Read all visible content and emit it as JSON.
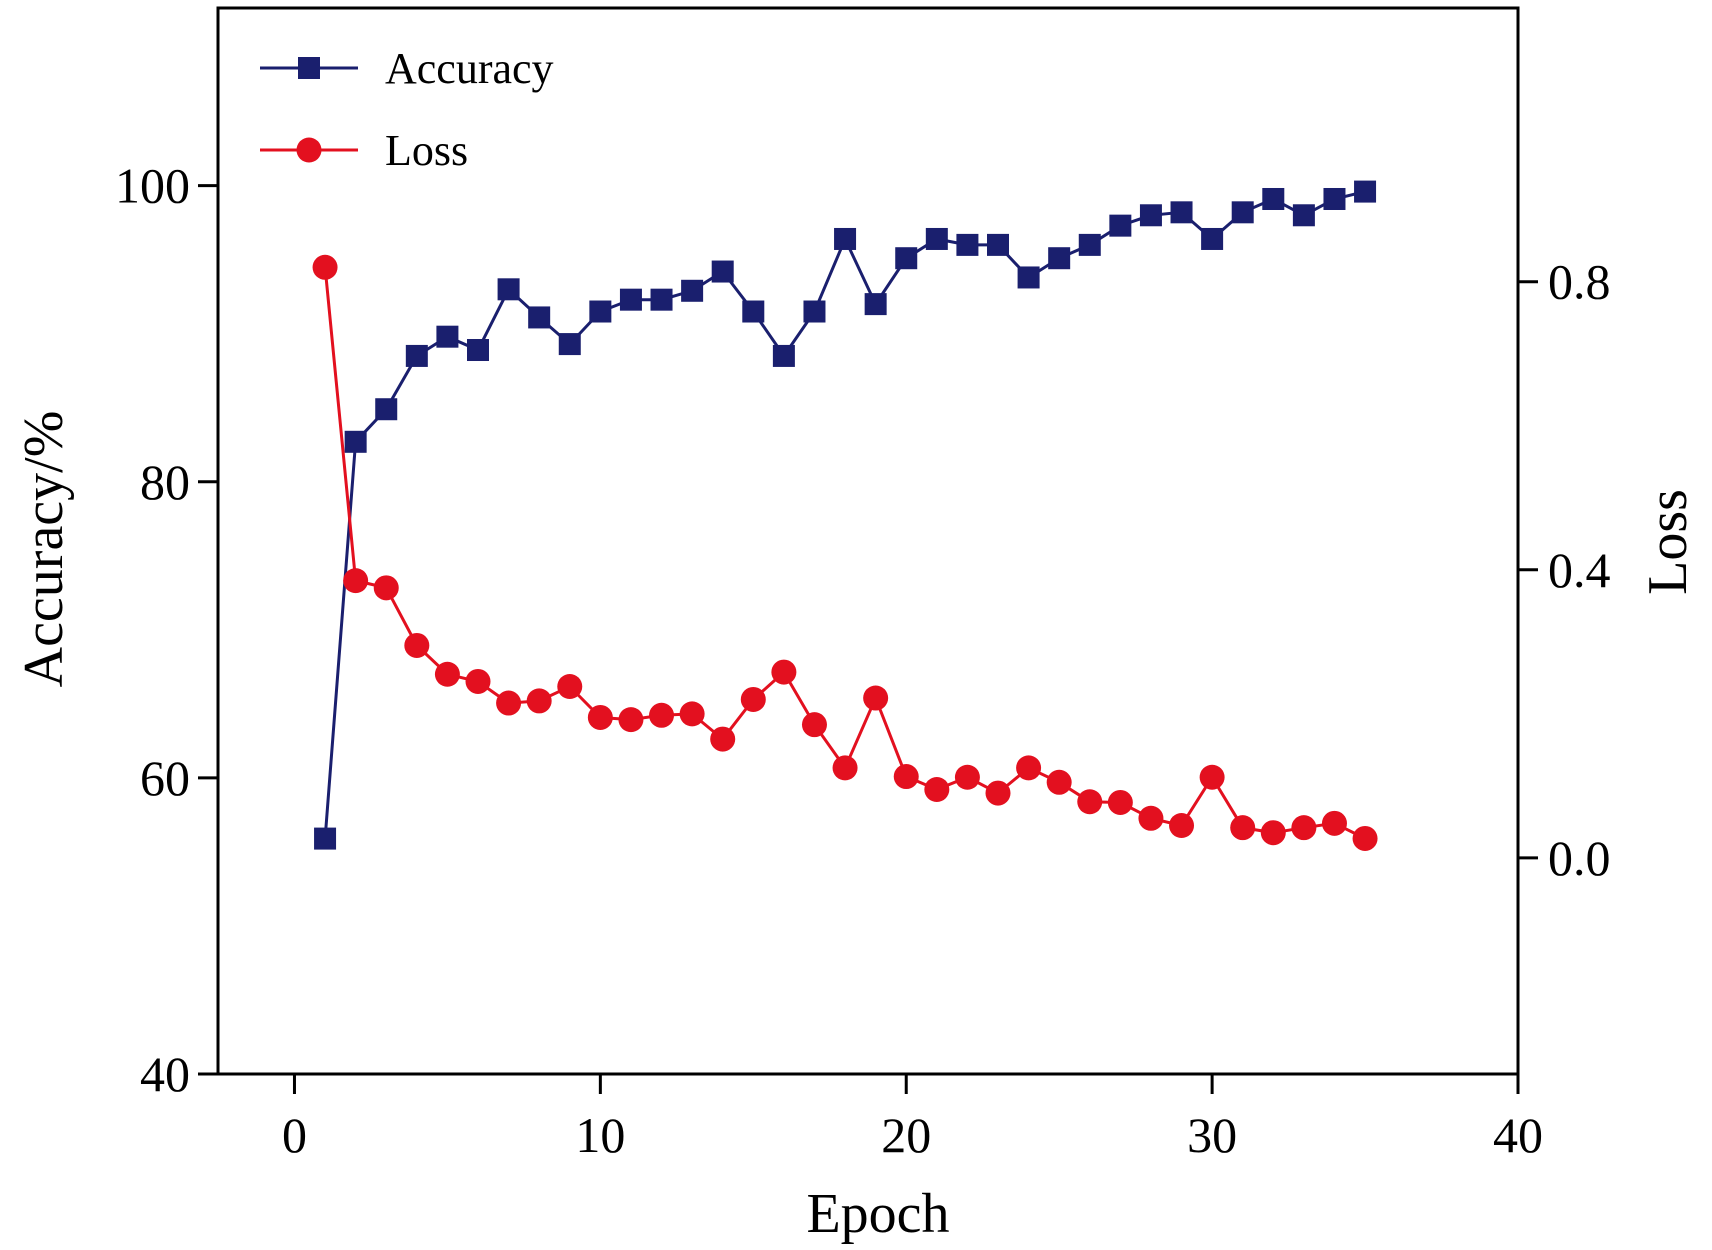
{
  "colors": {
    "accuracy": "#1a1f6e",
    "loss": "#e3101f",
    "axis": "#000000"
  },
  "chart_data": {
    "type": "line",
    "x_axis": {
      "label": "Epoch",
      "range": [
        -2.5,
        40
      ],
      "ticks": [
        0,
        10,
        20,
        30,
        40
      ],
      "tick_labels": [
        "0",
        "10",
        "20",
        "30",
        "40"
      ]
    },
    "y_axis_left": {
      "label": "Accuracy/%",
      "range": [
        40,
        112
      ],
      "ticks": [
        40,
        60,
        80,
        100
      ],
      "tick_labels": [
        "40",
        "60",
        "80",
        "100"
      ]
    },
    "y_axis_right": {
      "label": "Loss",
      "range": [
        -0.3,
        1.18
      ],
      "ticks": [
        0.0,
        0.4,
        0.8
      ],
      "tick_labels": [
        "0.0",
        "0.4",
        "0.8"
      ]
    },
    "legend": {
      "position": "top-left",
      "entries": [
        "Accuracy",
        "Loss"
      ]
    },
    "x": [
      1,
      2,
      3,
      4,
      5,
      6,
      7,
      8,
      9,
      10,
      11,
      12,
      13,
      14,
      15,
      16,
      17,
      18,
      19,
      20,
      21,
      22,
      23,
      24,
      25,
      26,
      27,
      28,
      29,
      30,
      31,
      32,
      33,
      34,
      35
    ],
    "series": [
      {
        "name": "Accuracy",
        "axis": "left",
        "marker": "square",
        "values": [
          55.9,
          82.7,
          84.9,
          88.5,
          89.8,
          88.9,
          93.0,
          91.1,
          89.3,
          91.5,
          92.3,
          92.3,
          92.9,
          94.2,
          91.5,
          88.5,
          91.5,
          96.4,
          92.0,
          95.1,
          96.4,
          96.0,
          96.0,
          93.8,
          95.1,
          96.0,
          97.3,
          98.0,
          98.2,
          96.4,
          98.2,
          99.1,
          98.0,
          99.1,
          99.6
        ]
      },
      {
        "name": "Loss",
        "axis": "right",
        "marker": "circle",
        "values": [
          0.82,
          0.385,
          0.375,
          0.295,
          0.255,
          0.245,
          0.215,
          0.218,
          0.238,
          0.195,
          0.192,
          0.198,
          0.2,
          0.165,
          0.22,
          0.258,
          0.185,
          0.125,
          0.222,
          0.113,
          0.095,
          0.112,
          0.09,
          0.125,
          0.105,
          0.078,
          0.077,
          0.055,
          0.045,
          0.112,
          0.042,
          0.035,
          0.042,
          0.048,
          0.027
        ]
      }
    ]
  }
}
